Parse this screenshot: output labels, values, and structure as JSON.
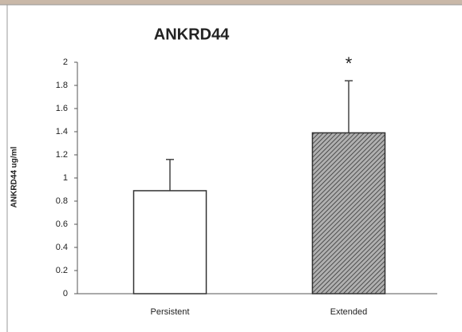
{
  "chart_data": {
    "type": "bar",
    "title": "ANKRD44",
    "y_label": "ANKRD44 ug/ml",
    "categories": [
      "Persistent",
      "Extended"
    ],
    "values": [
      0.89,
      1.39
    ],
    "errors": [
      0.27,
      0.45
    ],
    "colors": [
      "#ffffff",
      "#b0b0b0"
    ],
    "hatch": [
      false,
      true
    ],
    "annotation": "*",
    "ylim": [
      0,
      2
    ],
    "yticks": [
      0,
      0.2,
      0.4,
      0.6,
      0.8,
      1,
      1.2,
      1.4,
      1.6,
      1.8,
      2
    ],
    "grid": false
  }
}
